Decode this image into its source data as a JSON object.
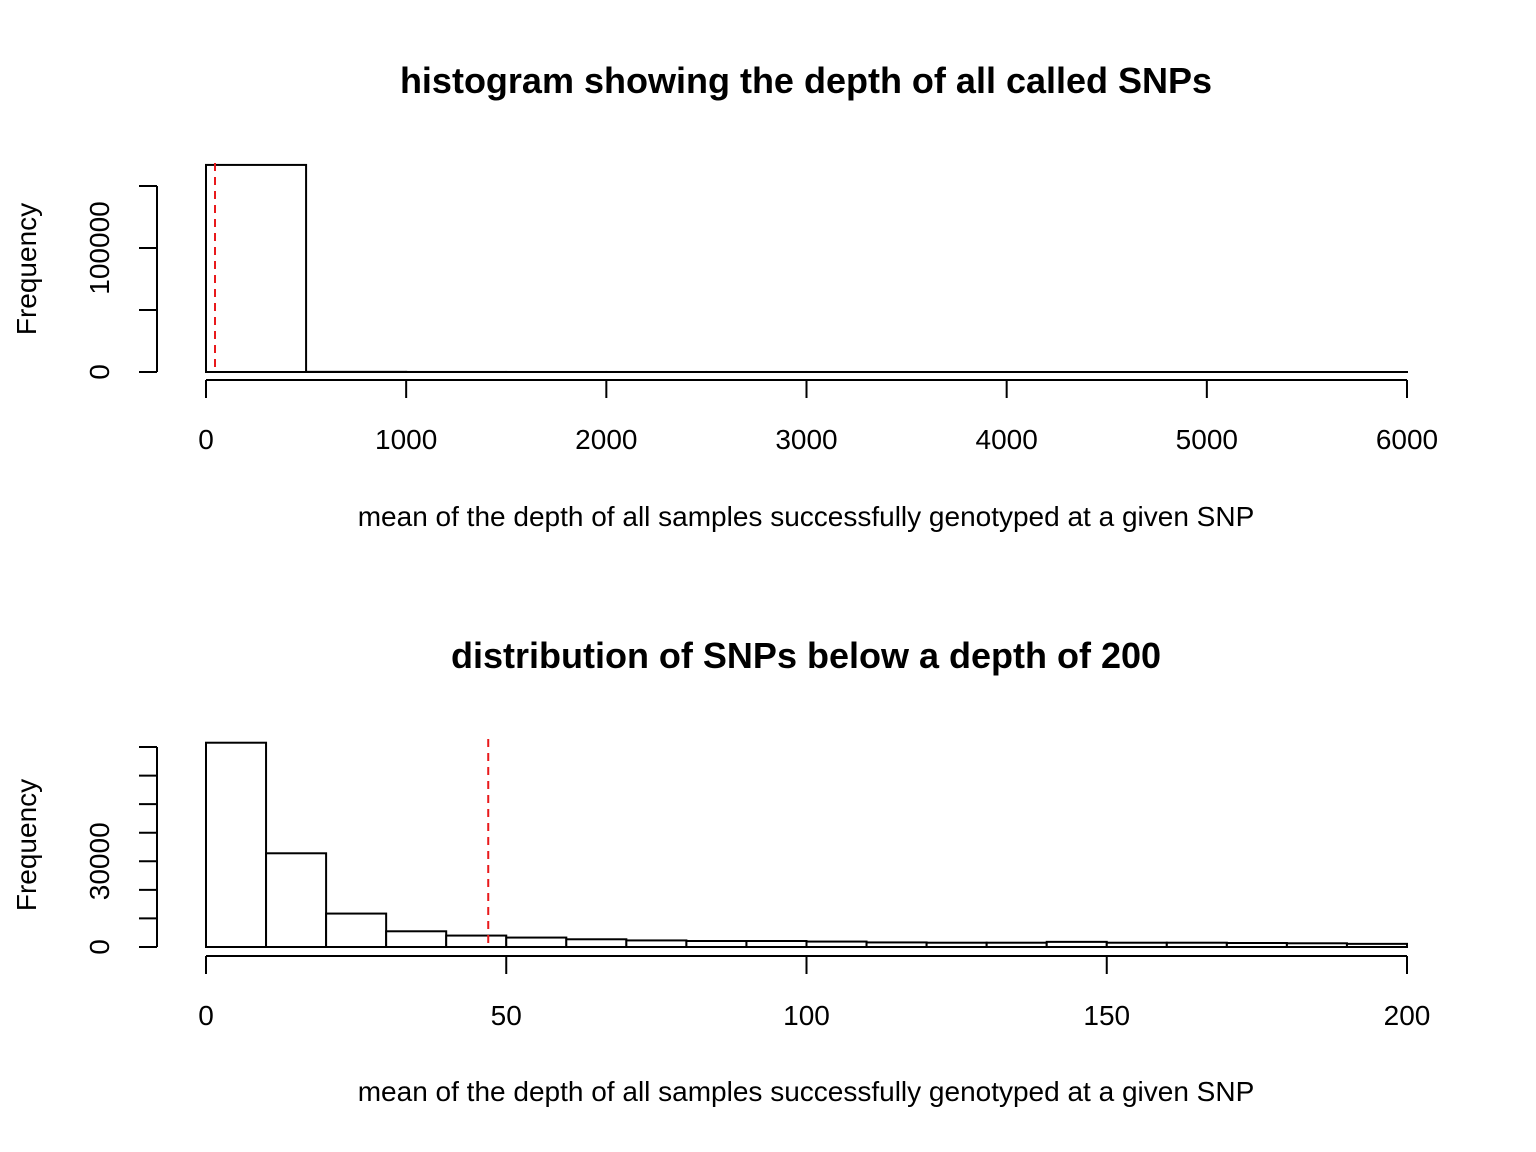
{
  "chart_data": [
    {
      "type": "bar",
      "title": "histogram showing the depth of all called SNPs",
      "xlabel": "mean of the depth of all samples successfully genotyped at a given SNP",
      "ylabel": "Frequency",
      "xlim": [
        0,
        6000
      ],
      "ylim": [
        0,
        150000
      ],
      "x_ticks": [
        0,
        1000,
        2000,
        3000,
        4000,
        5000,
        6000
      ],
      "y_ticks": [
        0,
        50000,
        100000,
        150000
      ],
      "y_tick_labels": [
        0,
        100000
      ],
      "bins": [
        {
          "x0": 0,
          "x1": 500,
          "count": 167000
        },
        {
          "x0": 500,
          "x1": 1000,
          "count": 120
        },
        {
          "x0": 1000,
          "x1": 1500,
          "count": 30
        },
        {
          "x0": 1500,
          "x1": 2000,
          "count": 15
        },
        {
          "x0": 2000,
          "x1": 2500,
          "count": 10
        },
        {
          "x0": 2500,
          "x1": 3000,
          "count": 8
        },
        {
          "x0": 3000,
          "x1": 3500,
          "count": 5
        },
        {
          "x0": 3500,
          "x1": 4000,
          "count": 4
        },
        {
          "x0": 4000,
          "x1": 4500,
          "count": 3
        },
        {
          "x0": 4500,
          "x1": 5000,
          "count": 2
        },
        {
          "x0": 5000,
          "x1": 5500,
          "count": 2
        },
        {
          "x0": 5500,
          "x1": 6000,
          "count": 1
        }
      ],
      "reference_line": {
        "x": 45,
        "color": "#e8191b",
        "style": "dashed"
      },
      "grid": false
    },
    {
      "type": "bar",
      "title": "distribution of SNPs below a depth of 200",
      "xlabel": "mean of the depth of all samples successfully genotyped at a given SNP",
      "ylabel": "Frequency",
      "xlim": [
        0,
        200
      ],
      "ylim": [
        0,
        70000
      ],
      "x_ticks": [
        0,
        50,
        100,
        150,
        200
      ],
      "y_ticks": [
        0,
        10000,
        20000,
        30000,
        40000,
        50000,
        60000,
        70000
      ],
      "y_tick_labels": [
        0,
        30000
      ],
      "bins": [
        {
          "x0": 0,
          "x1": 10,
          "count": 71500
        },
        {
          "x0": 10,
          "x1": 20,
          "count": 32800
        },
        {
          "x0": 20,
          "x1": 30,
          "count": 11700
        },
        {
          "x0": 30,
          "x1": 40,
          "count": 5500
        },
        {
          "x0": 40,
          "x1": 50,
          "count": 4000
        },
        {
          "x0": 50,
          "x1": 60,
          "count": 3300
        },
        {
          "x0": 60,
          "x1": 70,
          "count": 2700
        },
        {
          "x0": 70,
          "x1": 80,
          "count": 2300
        },
        {
          "x0": 80,
          "x1": 90,
          "count": 2100
        },
        {
          "x0": 90,
          "x1": 100,
          "count": 2100
        },
        {
          "x0": 100,
          "x1": 110,
          "count": 1900
        },
        {
          "x0": 110,
          "x1": 120,
          "count": 1600
        },
        {
          "x0": 120,
          "x1": 130,
          "count": 1500
        },
        {
          "x0": 130,
          "x1": 140,
          "count": 1500
        },
        {
          "x0": 140,
          "x1": 150,
          "count": 1800
        },
        {
          "x0": 150,
          "x1": 160,
          "count": 1500
        },
        {
          "x0": 160,
          "x1": 170,
          "count": 1500
        },
        {
          "x0": 170,
          "x1": 180,
          "count": 1400
        },
        {
          "x0": 180,
          "x1": 190,
          "count": 1300
        },
        {
          "x0": 190,
          "x1": 200,
          "count": 1100
        }
      ],
      "reference_line": {
        "x": 47,
        "color": "#e8191b",
        "style": "dashed"
      },
      "grid": false
    }
  ]
}
